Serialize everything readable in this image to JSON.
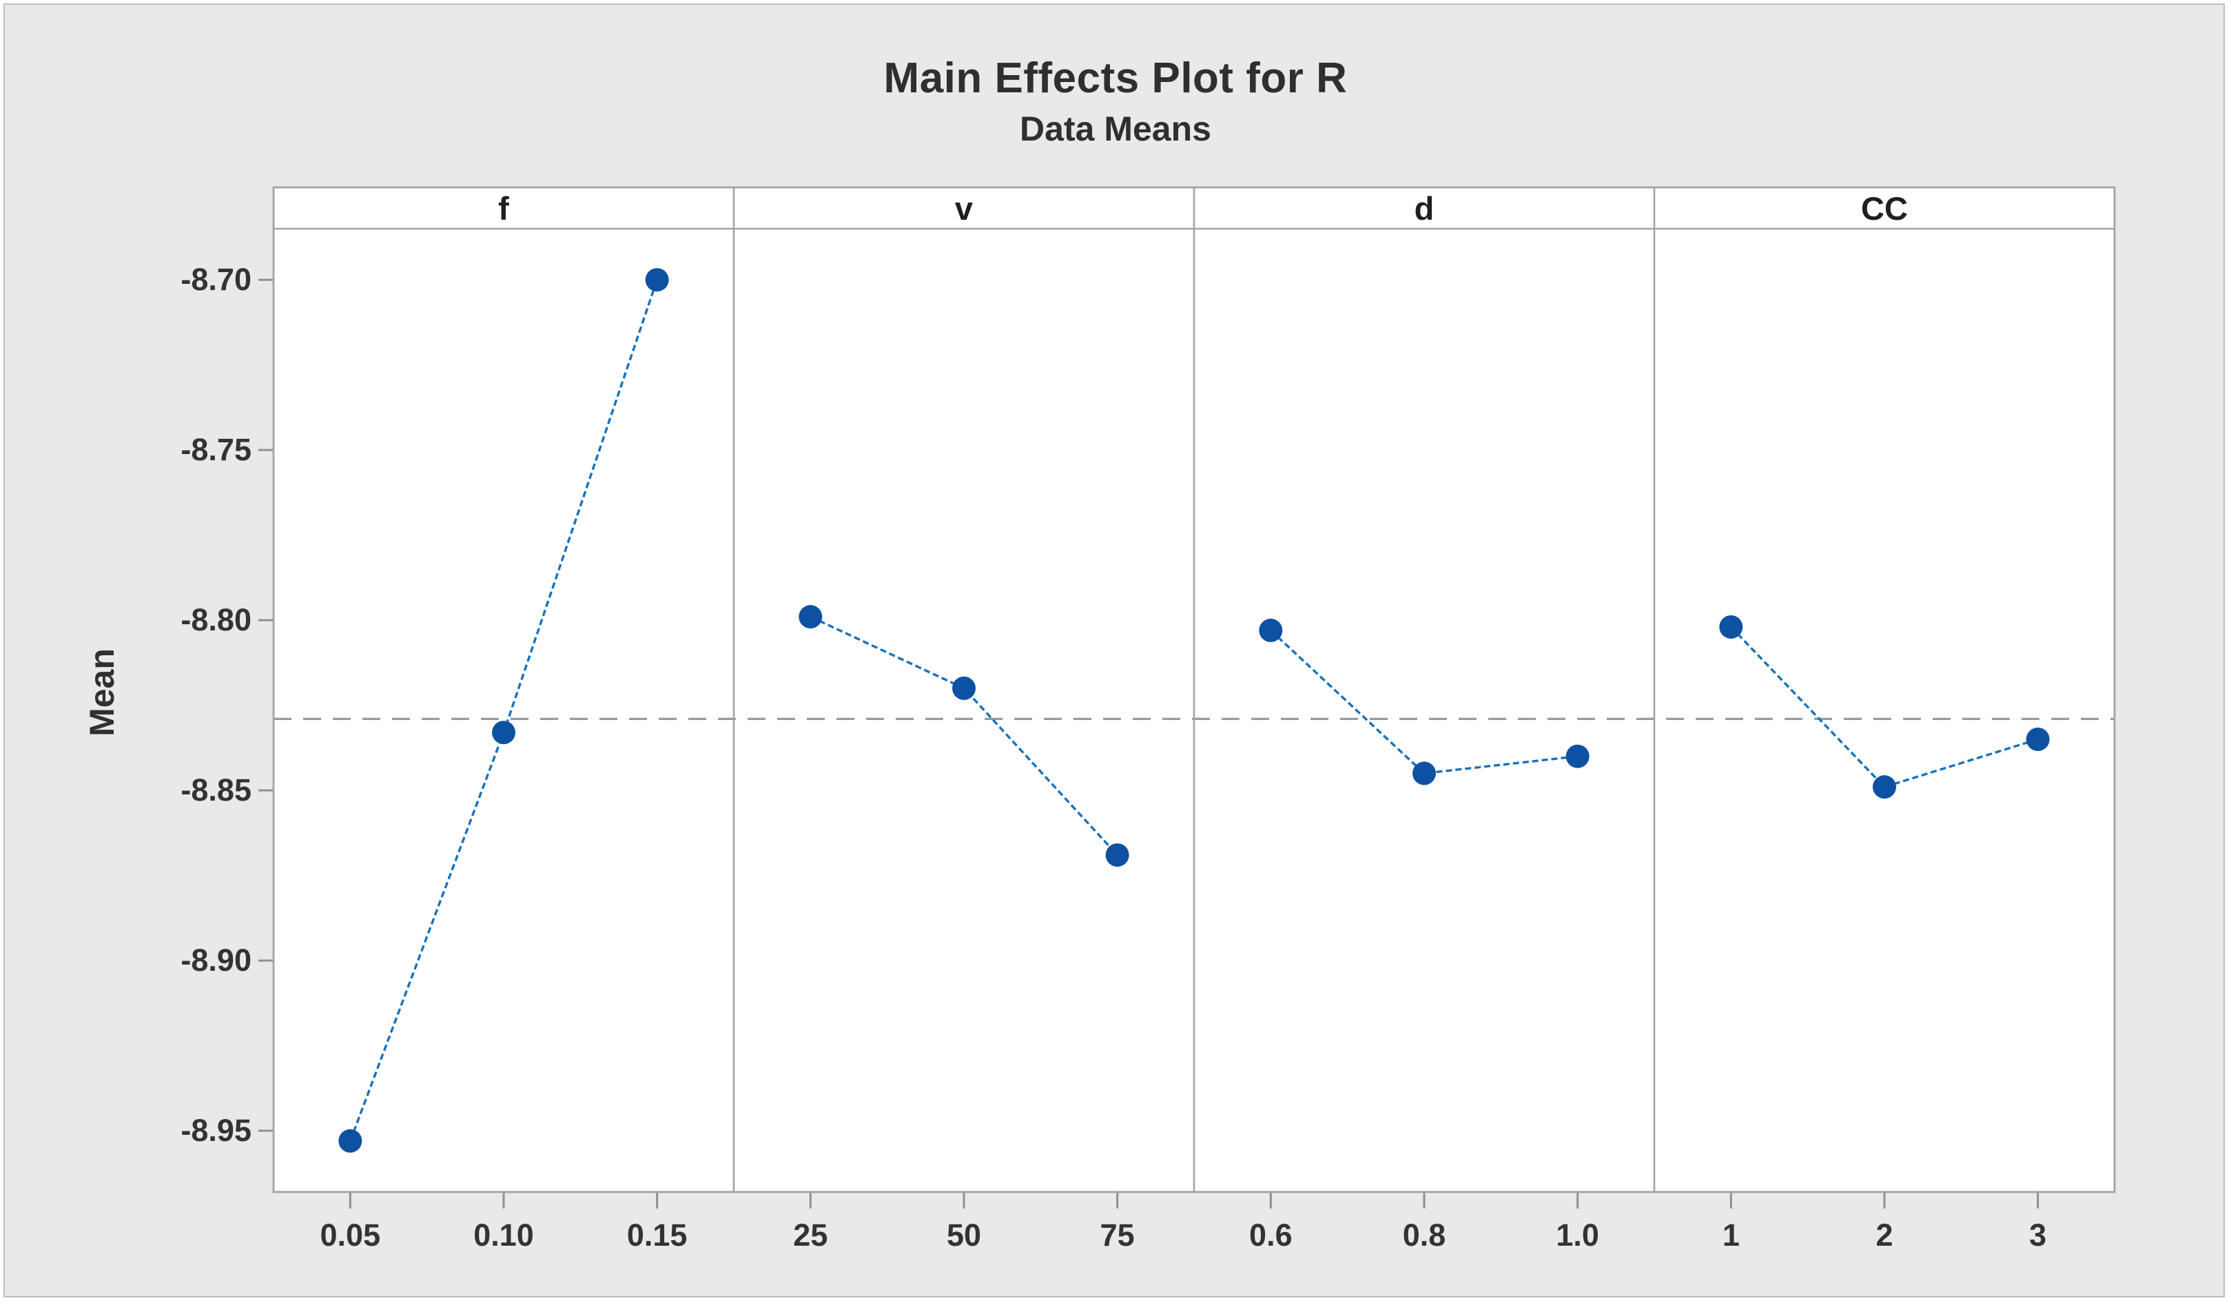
{
  "title": "Main Effects Plot for R",
  "subtitle": "Data Means",
  "ylabel": "Mean",
  "colors": {
    "figure_background": "#e9e9e9",
    "panel_background": "#ffffff",
    "panel_border": "#a3a3a3",
    "tick": "#8f8f8f",
    "text": "#333333",
    "series_line": "#1571bd",
    "marker": "#0d51a2",
    "reference_line": "#9b9b9b"
  },
  "chart_data": {
    "type": "line",
    "title": "Main Effects Plot for R",
    "subtitle": "Data Means",
    "ylabel": "Mean",
    "ylim": [
      -8.968,
      -8.685
    ],
    "yticks": [
      -8.7,
      -8.75,
      -8.8,
      -8.85,
      -8.9,
      -8.95
    ],
    "ytick_labels": [
      "-8.70",
      "-8.75",
      "-8.80",
      "-8.85",
      "-8.90",
      "-8.95"
    ],
    "reference_mean": -8.829,
    "grid": false,
    "legend": "none",
    "panels": [
      {
        "factor": "f",
        "categories": [
          "0.05",
          "0.10",
          "0.15"
        ],
        "values": [
          -8.953,
          -8.833,
          -8.7
        ]
      },
      {
        "factor": "v",
        "categories": [
          "25",
          "50",
          "75"
        ],
        "values": [
          -8.799,
          -8.82,
          -8.869
        ]
      },
      {
        "factor": "d",
        "categories": [
          "0.6",
          "0.8",
          "1.0"
        ],
        "values": [
          -8.803,
          -8.845,
          -8.84
        ]
      },
      {
        "factor": "CC",
        "categories": [
          "1",
          "2",
          "3"
        ],
        "values": [
          -8.802,
          -8.849,
          -8.835
        ]
      }
    ]
  }
}
